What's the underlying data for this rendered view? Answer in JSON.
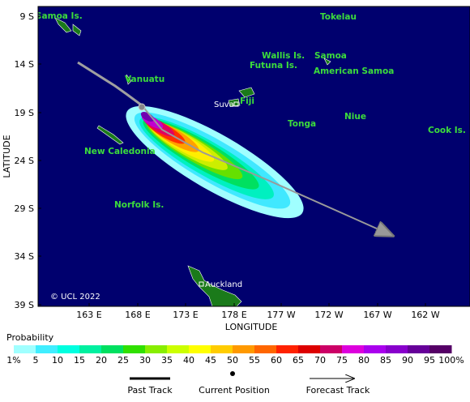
{
  "map": {
    "y_axis_title": "LATITUDE",
    "x_axis_title": "LONGITUDE",
    "y_ticks": [
      "9 S",
      "14 S",
      "19 S",
      "24 S",
      "29 S",
      "34 S",
      "39 S"
    ],
    "x_ticks": [
      "163 E",
      "168 E",
      "173 E",
      "178 E",
      "177 W",
      "172 W",
      "167 W",
      "162 W"
    ],
    "places": [
      "Samoa Is.",
      "Tokelau",
      "Wallis Is.",
      "Futuna Is.",
      "Samoa",
      "American Samoa",
      "Vanuatu",
      "Suva",
      "Fiji",
      "Tonga",
      "Niue",
      "Cook Is.",
      "New Caledonia",
      "Norfolk Is.",
      "Auckland"
    ],
    "credit": "© UCL 2022"
  },
  "legend": {
    "title": "Probability",
    "scale": [
      "1%",
      "5",
      "10",
      "15",
      "20",
      "25",
      "30",
      "35",
      "40",
      "45",
      "50",
      "55",
      "60",
      "65",
      "70",
      "75",
      "80",
      "85",
      "90",
      "95",
      "100%"
    ],
    "items": [
      "Past Track",
      "Current Position",
      "Forecast Track"
    ]
  }
}
